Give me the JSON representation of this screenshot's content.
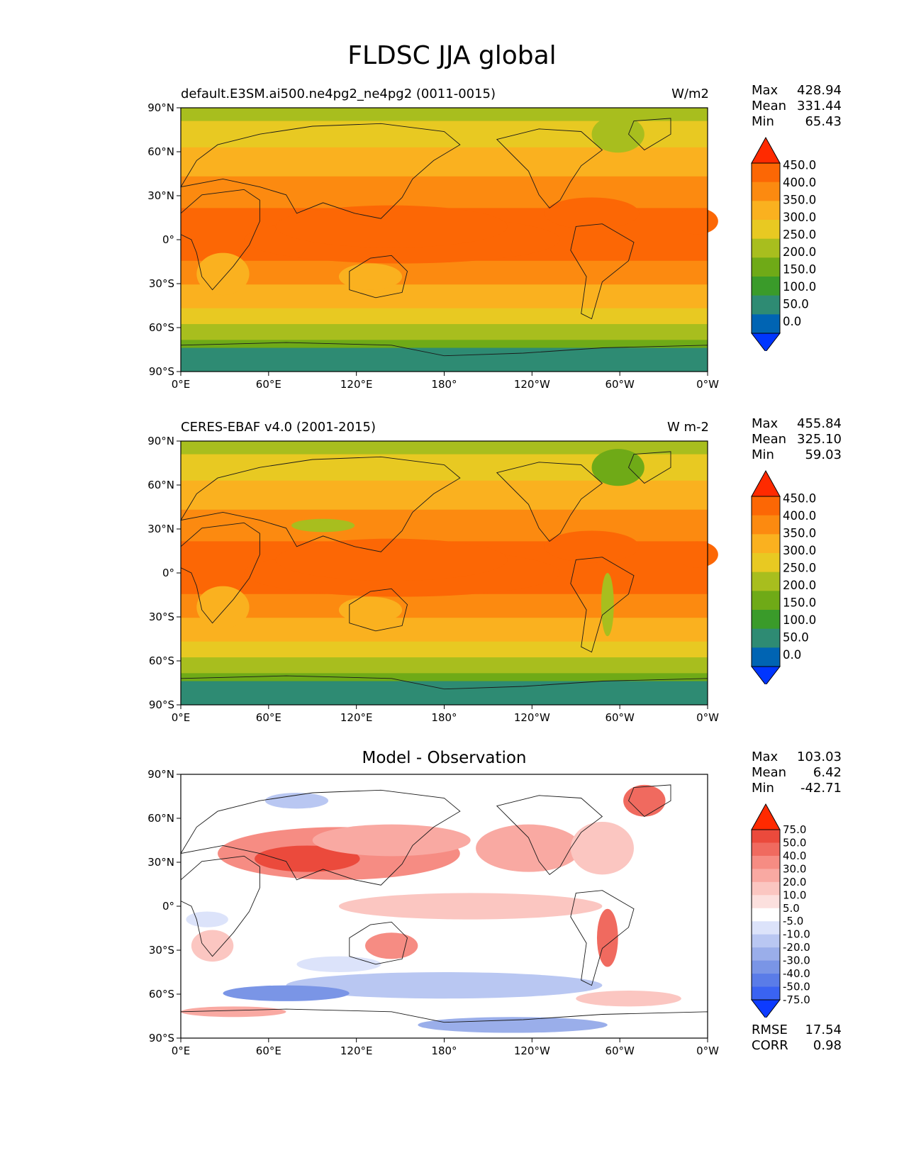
{
  "title": "FLDSC JJA global",
  "lat_ticks": [
    "90°N",
    "60°N",
    "30°N",
    "0°",
    "30°S",
    "60°S",
    "90°S"
  ],
  "lon_ticks": [
    "0°E",
    "60°E",
    "120°E",
    "180°",
    "120°W",
    "60°W",
    "0°W"
  ],
  "colors": {
    "abs_levels": [
      "#0036FF",
      "#0064B3",
      "#2E8B73",
      "#3A9B2A",
      "#6FAA17",
      "#A8BE1E",
      "#E8C922",
      "#FAB11F",
      "#FC8A10",
      "#FC6705",
      "#FF2A00"
    ],
    "diff_levels": [
      "#0D3BFF",
      "#3A63F2",
      "#5A7CE8",
      "#7A95E6",
      "#9AAEEA",
      "#B9C7F2",
      "#DCE3FA",
      "#FFFFFF",
      "#FCE0DE",
      "#FBC6C1",
      "#F9A9A2",
      "#F68C83",
      "#F06A5F",
      "#EB4A3C",
      "#FF2A00"
    ]
  },
  "panels": [
    {
      "left_label": "default.E3SM.ai500.ne4pg2_ne4pg2 (0011-0015)",
      "center_label": "",
      "right_label": "W/m2",
      "stats": [
        {
          "label": "Max",
          "value": "428.94"
        },
        {
          "label": "Mean",
          "value": "331.44"
        },
        {
          "label": "Min",
          "value": "65.43"
        }
      ],
      "colorbar_ticks": [
        "450.0",
        "400.0",
        "350.0",
        "300.0",
        "250.0",
        "200.0",
        "150.0",
        "100.0",
        "50.0",
        "0.0"
      ],
      "extra_stats": []
    },
    {
      "left_label": "CERES-EBAF v4.0 (2001-2015)",
      "center_label": "",
      "right_label": "W m-2",
      "stats": [
        {
          "label": "Max",
          "value": "455.84"
        },
        {
          "label": "Mean",
          "value": "325.10"
        },
        {
          "label": "Min",
          "value": "59.03"
        }
      ],
      "colorbar_ticks": [
        "450.0",
        "400.0",
        "350.0",
        "300.0",
        "250.0",
        "200.0",
        "150.0",
        "100.0",
        "50.0",
        "0.0"
      ],
      "extra_stats": []
    },
    {
      "left_label": "",
      "center_label": "Model - Observation",
      "right_label": "",
      "stats": [
        {
          "label": "Max",
          "value": "103.03"
        },
        {
          "label": "Mean",
          "value": "6.42"
        },
        {
          "label": "Min",
          "value": "-42.71"
        }
      ],
      "colorbar_ticks": [
        "75.0",
        "50.0",
        "40.0",
        "30.0",
        "20.0",
        "10.0",
        "5.0",
        "-5.0",
        "-10.0",
        "-20.0",
        "-30.0",
        "-40.0",
        "-50.0",
        "-75.0"
      ],
      "extra_stats": [
        {
          "label": "RMSE",
          "value": "17.54"
        },
        {
          "label": "CORR",
          "value": "0.98"
        }
      ]
    }
  ]
}
